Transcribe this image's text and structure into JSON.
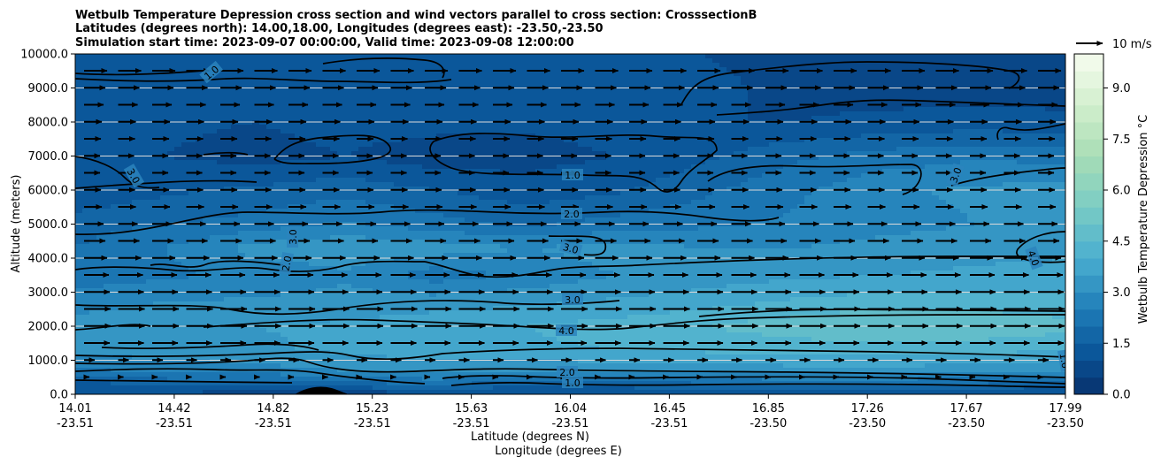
{
  "chart_data": {
    "type": "contour",
    "title": [
      "Wetbulb Temperature Depression cross section and wind vectors parallel to cross section: CrosssectionB",
      "Latitudes (degrees north): 14.00,18.00, Longitudes (degrees east): -23.50,-23.50",
      "Simulation start time: 2023-09-07 00:00:00, Valid time: 2023-09-08 12:00:00"
    ],
    "ylabel": "Altitude (meters)",
    "xlabel": "Latitude (degrees N)",
    "xlabel2": "Longitude (degrees E)",
    "ylim": [
      0,
      10000
    ],
    "y_ticks": [
      "0.0",
      "1000.0",
      "2000.0",
      "3000.0",
      "4000.0",
      "5000.0",
      "6000.0",
      "7000.0",
      "8000.0",
      "9000.0",
      "10000.0"
    ],
    "x_ticks": [
      {
        "lat": "14.01",
        "lon": "-23.51"
      },
      {
        "lat": "14.42",
        "lon": "-23.51"
      },
      {
        "lat": "14.82",
        "lon": "-23.51"
      },
      {
        "lat": "15.23",
        "lon": "-23.51"
      },
      {
        "lat": "15.63",
        "lon": "-23.51"
      },
      {
        "lat": "16.04",
        "lon": "-23.51"
      },
      {
        "lat": "16.45",
        "lon": "-23.51"
      },
      {
        "lat": "16.85",
        "lon": "-23.50"
      },
      {
        "lat": "17.26",
        "lon": "-23.50"
      },
      {
        "lat": "17.67",
        "lon": "-23.50"
      },
      {
        "lat": "17.99",
        "lon": "-23.50"
      }
    ],
    "colorbar": {
      "label": "Wetbulb Temperature Depression °C",
      "range": [
        0,
        10
      ],
      "ticks": [
        "0.0",
        "1.5",
        "3.0",
        "4.5",
        "6.0",
        "7.5",
        "9.0"
      ]
    },
    "quiver_key": "10 m/s",
    "contour_labels": [
      "1.0",
      "2.0",
      "3.0",
      "4.0",
      "2.0",
      "3.0",
      "1.0",
      "1.0",
      "3.0",
      "3.0",
      "4.0",
      "1.0",
      "2.0",
      "3.0"
    ],
    "field_rows": [
      {
        "z": 0,
        "v": [
          1.0,
          1.0,
          0.6,
          0.5,
          1.0,
          1.2,
          1.0,
          1.0,
          1.0,
          1.0,
          1.0,
          1.0
        ]
      },
      {
        "z": 250,
        "v": [
          1.2,
          1.5,
          1.4,
          1.6,
          2.0,
          1.4,
          1.6,
          1.8,
          1.9,
          1.9,
          1.8,
          1.5
        ]
      },
      {
        "z": 700,
        "v": [
          2.4,
          2.6,
          2.8,
          3.0,
          3.2,
          3.0,
          3.2,
          3.2,
          3.3,
          3.3,
          3.2,
          3.0
        ]
      },
      {
        "z": 1300,
        "v": [
          3.1,
          3.3,
          3.4,
          3.6,
          3.8,
          3.9,
          4.0,
          4.1,
          4.2,
          4.3,
          4.2,
          4.0
        ]
      },
      {
        "z": 2000,
        "v": [
          3.2,
          3.5,
          3.5,
          3.6,
          3.8,
          4.0,
          4.2,
          4.5,
          4.8,
          5.0,
          4.9,
          4.7
        ]
      },
      {
        "z": 2700,
        "v": [
          2.8,
          3.0,
          3.1,
          3.2,
          3.3,
          3.4,
          3.6,
          3.8,
          4.1,
          4.3,
          4.3,
          4.1
        ]
      },
      {
        "z": 3500,
        "v": [
          2.2,
          2.4,
          2.6,
          2.9,
          2.2,
          2.6,
          3.0,
          3.2,
          3.4,
          3.5,
          3.6,
          3.8
        ]
      },
      {
        "z": 4300,
        "v": [
          2.0,
          2.5,
          3.2,
          3.4,
          3.3,
          3.0,
          3.2,
          3.0,
          3.0,
          3.2,
          3.3,
          3.3
        ]
      },
      {
        "z": 5000,
        "v": [
          1.8,
          2.0,
          2.2,
          2.6,
          2.2,
          1.9,
          2.2,
          2.4,
          2.6,
          2.8,
          3.0,
          3.0
        ]
      },
      {
        "z": 6000,
        "v": [
          1.0,
          1.4,
          1.6,
          1.8,
          1.5,
          1.2,
          1.4,
          1.9,
          2.4,
          2.9,
          3.1,
          3.2
        ]
      },
      {
        "z": 7000,
        "v": [
          1.2,
          1.0,
          0.8,
          1.0,
          0.7,
          0.8,
          1.0,
          1.4,
          1.9,
          2.2,
          2.4,
          2.3
        ]
      },
      {
        "z": 8000,
        "v": [
          1.3,
          1.1,
          1.0,
          1.2,
          1.2,
          1.1,
          1.2,
          1.0,
          1.0,
          1.1,
          1.2,
          1.1
        ]
      },
      {
        "z": 9000,
        "v": [
          1.1,
          1.3,
          1.2,
          1.3,
          1.2,
          1.4,
          1.3,
          1.1,
          0.9,
          0.8,
          0.8,
          0.8
        ]
      },
      {
        "z": 10000,
        "v": [
          1.0,
          1.1,
          1.2,
          1.1,
          1.1,
          1.2,
          1.1,
          1.0,
          0.8,
          0.7,
          0.7,
          0.7
        ]
      }
    ]
  }
}
